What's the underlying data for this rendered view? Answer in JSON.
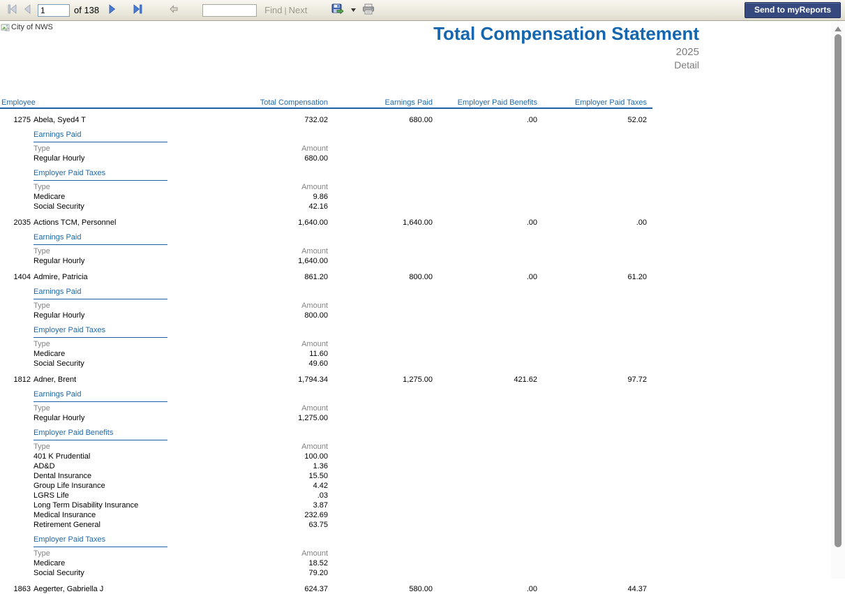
{
  "toolbar": {
    "page_input": "1",
    "of_label": "of 138",
    "find_placeholder": "",
    "find_label": "Find",
    "separator": "|",
    "next_label": "Next",
    "send_button": "Send to myReports"
  },
  "report": {
    "logo_alt": "City of NWS",
    "title": "Total Compensation Statement",
    "year": "2025",
    "view": "Detail"
  },
  "table": {
    "headers": [
      "Employee",
      "Total Compensation",
      "Earnings Paid",
      "Employer Paid Benefits",
      "Employer Paid Taxes"
    ],
    "detail_columns": {
      "type": "Type",
      "amount": "Amount"
    }
  },
  "employees": [
    {
      "id": "1275",
      "name": "Abela, Syed4 T",
      "total_compensation": "732.02",
      "earnings_paid": "680.00",
      "employer_paid_benefits": ".00",
      "employer_paid_taxes": "52.02",
      "sections": [
        {
          "title": "Earnings Paid",
          "rows": [
            [
              "Regular Hourly",
              "680.00"
            ]
          ]
        },
        {
          "title": "Employer Paid Taxes",
          "rows": [
            [
              "Medicare",
              "9.86"
            ],
            [
              "Social Security",
              "42.16"
            ]
          ]
        }
      ]
    },
    {
      "id": "2035",
      "name": "Actions TCM, Personnel",
      "total_compensation": "1,640.00",
      "earnings_paid": "1,640.00",
      "employer_paid_benefits": ".00",
      "employer_paid_taxes": ".00",
      "sections": [
        {
          "title": "Earnings Paid",
          "rows": [
            [
              "Regular Hourly",
              "1,640.00"
            ]
          ]
        }
      ]
    },
    {
      "id": "1404",
      "name": "Admire, Patricia",
      "total_compensation": "861.20",
      "earnings_paid": "800.00",
      "employer_paid_benefits": ".00",
      "employer_paid_taxes": "61.20",
      "sections": [
        {
          "title": "Earnings Paid",
          "rows": [
            [
              "Regular Hourly",
              "800.00"
            ]
          ]
        },
        {
          "title": "Employer Paid Taxes",
          "rows": [
            [
              "Medicare",
              "11.60"
            ],
            [
              "Social Security",
              "49.60"
            ]
          ]
        }
      ]
    },
    {
      "id": "1812",
      "name": "Adner, Brent",
      "total_compensation": "1,794.34",
      "earnings_paid": "1,275.00",
      "employer_paid_benefits": "421.62",
      "employer_paid_taxes": "97.72",
      "sections": [
        {
          "title": "Earnings Paid",
          "rows": [
            [
              "Regular Hourly",
              "1,275.00"
            ]
          ]
        },
        {
          "title": "Employer Paid Benefits",
          "rows": [
            [
              "401 K Prudential",
              "100.00"
            ],
            [
              "AD&D",
              "1.36"
            ],
            [
              "Dental Insurance",
              "15.50"
            ],
            [
              "Group Life Insurance",
              "4.42"
            ],
            [
              "LGRS Life",
              ".03"
            ],
            [
              "Long Term Disability Insurance",
              "3.87"
            ],
            [
              "Medical Insurance",
              "232.69"
            ],
            [
              "Retirement General",
              "63.75"
            ]
          ]
        },
        {
          "title": "Employer Paid Taxes",
          "rows": [
            [
              "Medicare",
              "18.52"
            ],
            [
              "Social Security",
              "79.20"
            ]
          ]
        }
      ]
    },
    {
      "id": "1863",
      "name": "Aegerter, Gabriella J",
      "total_compensation": "624.37",
      "earnings_paid": "580.00",
      "employer_paid_benefits": ".00",
      "employer_paid_taxes": "44.37",
      "sections": []
    }
  ],
  "colors": {
    "title_blue": "#1566ae",
    "header_blue": "#1f68a8",
    "underline_blue": "#1f5fa5",
    "muted_gray": "#848484",
    "button_navy": "#35497e"
  }
}
